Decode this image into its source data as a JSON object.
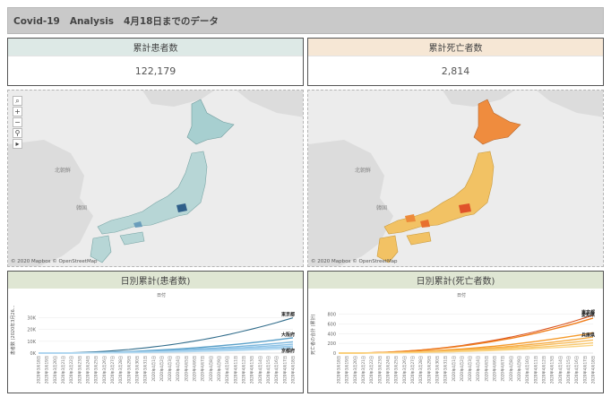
{
  "header": {
    "title": "Covid-19   Analysis   4月18日までのデータ"
  },
  "kpis": {
    "cases": {
      "label": "累計患者数",
      "value": "122,179",
      "color": "#dde9e6"
    },
    "deaths": {
      "label": "累計死亡者数",
      "value": "2,814",
      "color": "#f6e7d5"
    }
  },
  "maps": {
    "credit": "© 2020 Mapbox © OpenStreetMap",
    "label_north_korea": "北朝鮮",
    "label_south_korea": "韓国",
    "tools": {
      "search": "⌕",
      "zoom_in": "+",
      "zoom_out": "−",
      "pin": "⚲",
      "expand": "▸"
    },
    "cases_fill": "#b7d6d6",
    "deaths_fill": "#f2c264",
    "deaths_hokkaido": "#ef8c3e"
  },
  "charts": {
    "cases": {
      "title": "日別累計(患者数)",
      "x_header": "日付",
      "ylabel": "患者数 (2020年3月26...",
      "series_labels": [
        "東京都",
        "大阪府",
        "京都府"
      ]
    },
    "deaths": {
      "title": "日別累計(死亡者数)",
      "x_header": "日付",
      "ylabel": "死亡者の合計 (累計)",
      "series_labels": [
        "東京都",
        "愛知県",
        "兵庫県"
      ]
    }
  },
  "chart_data": [
    {
      "type": "line",
      "title": "日別累計(患者数)",
      "xlabel": "日付",
      "ylabel": "患者数 (2020年3月26...",
      "yticks": [
        "0K",
        "10K",
        "20K",
        "30K"
      ],
      "ylim": [
        0,
        35000
      ],
      "x": [
        "2020年3月18日",
        "2020年3月19日",
        "2020年3月20日",
        "2020年3月21日",
        "2020年3月22日",
        "2020年3月23日",
        "2020年3月24日",
        "2020年3月25日",
        "2020年3月26日",
        "2020年3月27日",
        "2020年3月28日",
        "2020年3月29日",
        "2020年3月30日",
        "2020年3月31日",
        "2020年4月1日",
        "2020年4月2日",
        "2020年4月3日",
        "2020年4月4日",
        "2020年4月5日",
        "2020年4月6日",
        "2020年4月7日",
        "2020年4月8日",
        "2020年4月9日",
        "2020年4月10日",
        "2020年4月11日",
        "2020年4月12日",
        "2020年4月13日",
        "2020年4月14日",
        "2020年4月15日",
        "2020年4月16日",
        "2020年4月17日",
        "2020年4月18日"
      ],
      "series": [
        {
          "name": "東京都",
          "color": "#2f6b8a",
          "end": 30000
        },
        {
          "name": "大阪府",
          "color": "#5aa0c8",
          "end": 13000
        },
        {
          "color": "#7db8de",
          "end": 9500
        },
        {
          "color": "#8ec3e6",
          "end": 7500
        },
        {
          "color": "#9bcbeb",
          "end": 6000
        },
        {
          "color": "#a8d2ee",
          "end": 5000
        },
        {
          "name": "京都府",
          "color": "#b5daf1",
          "end": 3800
        }
      ]
    },
    {
      "type": "line",
      "title": "日別累計(死亡者数)",
      "xlabel": "日付",
      "ylabel": "死亡者の合計 (累計)",
      "yticks": [
        "0",
        "200",
        "400",
        "600",
        "800"
      ],
      "ylim": [
        0,
        850
      ],
      "x": [
        "2020年3月18日",
        "2020年3月19日",
        "2020年3月20日",
        "2020年3月21日",
        "2020年3月22日",
        "2020年3月23日",
        "2020年3月24日",
        "2020年3月25日",
        "2020年3月26日",
        "2020年3月27日",
        "2020年3月28日",
        "2020年3月29日",
        "2020年3月30日",
        "2020年3月31日",
        "2020年4月1日",
        "2020年4月2日",
        "2020年4月3日",
        "2020年4月4日",
        "2020年4月5日",
        "2020年4月6日",
        "2020年4月7日",
        "2020年4月8日",
        "2020年4月9日",
        "2020年4月10日",
        "2020年4月11日",
        "2020年4月12日",
        "2020年4月13日",
        "2020年4月14日",
        "2020年4月15日",
        "2020年4月16日",
        "2020年4月17日",
        "2020年4月18日"
      ],
      "series": [
        {
          "name": "東京都",
          "color": "#d9541f",
          "end": 780
        },
        {
          "name": "愛知県",
          "color": "#f07d1a",
          "end": 720
        },
        {
          "name": "兵庫県",
          "color": "#f59b2c",
          "end": 420
        },
        {
          "color": "#f6ad45",
          "end": 330
        },
        {
          "color": "#f8bd5c",
          "end": 270
        },
        {
          "color": "#f9c970",
          "end": 210
        },
        {
          "color": "#fad585",
          "end": 160
        }
      ]
    }
  ]
}
